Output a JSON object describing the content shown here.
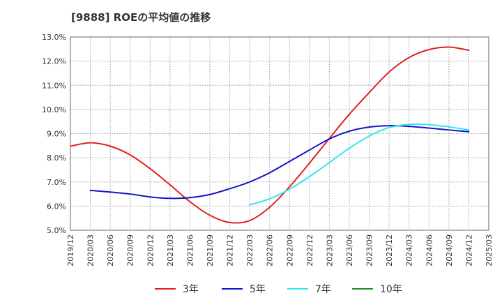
{
  "chart_data": {
    "type": "line",
    "title": "[9888]  ROEの平均値の推移",
    "xlabel": "",
    "ylabel": "",
    "x_ticks": [
      "2019/12",
      "2020/03",
      "2020/06",
      "2020/09",
      "2020/12",
      "2021/03",
      "2021/06",
      "2021/09",
      "2021/12",
      "2022/03",
      "2022/06",
      "2022/09",
      "2022/12",
      "2023/03",
      "2023/06",
      "2023/09",
      "2023/12",
      "2024/03",
      "2024/06",
      "2024/09",
      "2024/12",
      "2025/03"
    ],
    "y_ticks": [
      "5.0%",
      "6.0%",
      "7.0%",
      "8.0%",
      "9.0%",
      "10.0%",
      "11.0%",
      "12.0%",
      "13.0%"
    ],
    "ylim": [
      5.0,
      13.0
    ],
    "grid": true,
    "legend_position": "bottom",
    "series": [
      {
        "name": "3年",
        "color": "#e02020",
        "x": [
          "2019/12",
          "2020/03",
          "2020/06",
          "2020/09",
          "2020/12",
          "2021/03",
          "2021/06",
          "2021/09",
          "2021/12",
          "2022/03",
          "2022/06",
          "2022/09",
          "2022/12",
          "2023/03",
          "2023/06",
          "2023/09",
          "2023/12",
          "2024/03",
          "2024/06",
          "2024/09",
          "2024/12"
        ],
        "values": [
          8.48,
          8.62,
          8.48,
          8.12,
          7.55,
          6.88,
          6.18,
          5.62,
          5.32,
          5.4,
          5.95,
          6.8,
          7.78,
          8.8,
          9.8,
          10.7,
          11.55,
          12.15,
          12.48,
          12.58,
          12.45
        ]
      },
      {
        "name": "5年",
        "color": "#1414c8",
        "x": [
          "2020/03",
          "2020/06",
          "2020/09",
          "2020/12",
          "2021/03",
          "2021/06",
          "2021/09",
          "2021/12",
          "2022/03",
          "2022/06",
          "2022/09",
          "2022/12",
          "2023/03",
          "2023/06",
          "2023/09",
          "2023/12",
          "2024/03",
          "2024/06",
          "2024/09",
          "2024/12"
        ],
        "values": [
          6.65,
          6.58,
          6.5,
          6.38,
          6.32,
          6.35,
          6.48,
          6.72,
          7.0,
          7.38,
          7.85,
          8.32,
          8.78,
          9.1,
          9.27,
          9.33,
          9.3,
          9.23,
          9.15,
          9.08
        ]
      },
      {
        "name": "7年",
        "color": "#33e6ee",
        "x": [
          "2022/03",
          "2022/06",
          "2022/09",
          "2022/12",
          "2023/03",
          "2023/06",
          "2023/09",
          "2023/12",
          "2024/03",
          "2024/06",
          "2024/09",
          "2024/12"
        ],
        "values": [
          6.05,
          6.3,
          6.7,
          7.22,
          7.8,
          8.4,
          8.9,
          9.25,
          9.38,
          9.37,
          9.28,
          9.15
        ]
      },
      {
        "name": "10年",
        "color": "#228b22",
        "x": [],
        "values": []
      }
    ]
  }
}
